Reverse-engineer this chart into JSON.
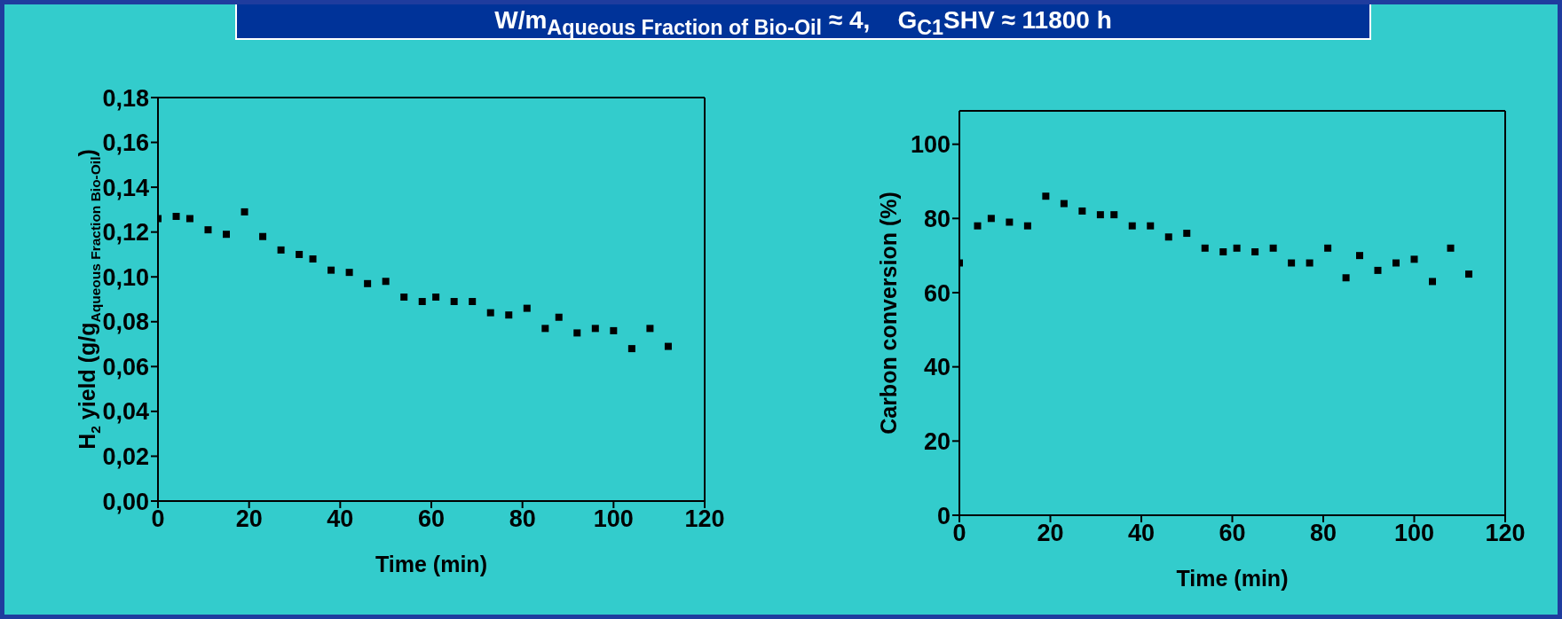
{
  "chart_data": [
    {
      "type": "scatter",
      "title": "W/m$_{Aqueous Fraction of Bio-Oil}$ ≈ 4,    G$_{C1}$SHV ≈ 11800 h",
      "xlabel": "Time (min)",
      "ylabel": "H$_{2}$ yield (g/g$_{Aqueous Fraction Bio-Oil}$)",
      "marker": "square",
      "legend": false,
      "x": [
        0,
        4,
        7,
        11,
        15,
        19,
        23,
        27,
        31,
        34,
        38,
        42,
        46,
        50,
        54,
        58,
        61,
        65,
        69,
        73,
        77,
        81,
        85,
        88,
        92,
        96,
        100,
        104,
        108,
        112
      ],
      "series": [
        {
          "color": "#000000",
          "values": [
            0.126,
            0.127,
            0.126,
            0.121,
            0.119,
            0.129,
            0.118,
            0.112,
            0.11,
            0.108,
            0.103,
            0.102,
            0.097,
            0.098,
            0.091,
            0.089,
            0.091,
            0.089,
            0.089,
            0.084,
            0.083,
            0.086,
            0.077,
            0.082,
            0.075,
            0.077,
            0.076,
            0.068,
            0.077,
            0.069
          ]
        }
      ],
      "xlim": [
        0,
        120
      ],
      "xticks": [
        0,
        20,
        40,
        60,
        80,
        100,
        120
      ],
      "ylim": [
        0,
        0.18
      ],
      "yticks": [
        {
          "value": 0,
          "label": "0,00"
        },
        {
          "value": 0.02,
          "label": "0,02"
        },
        {
          "value": 0.04,
          "label": "0,04"
        },
        {
          "value": 0.06,
          "label": "0,06"
        },
        {
          "value": 0.08,
          "label": "0,08"
        },
        {
          "value": 0.1,
          "label": "0,10"
        },
        {
          "value": 0.12,
          "label": "0,12"
        },
        {
          "value": 0.14,
          "label": "0,14"
        },
        {
          "value": 0.16,
          "label": "0,16"
        },
        {
          "value": 0.18,
          "label": "0,18"
        }
      ]
    },
    {
      "type": "scatter",
      "xlabel": "Time (min)",
      "ylabel": "Carbon conversion (%)",
      "marker": "square",
      "legend": false,
      "x": [
        0,
        4,
        7,
        11,
        15,
        19,
        23,
        27,
        31,
        34,
        38,
        42,
        46,
        50,
        54,
        58,
        61,
        65,
        69,
        73,
        77,
        81,
        85,
        88,
        92,
        96,
        100,
        104,
        108,
        112
      ],
      "series": [
        {
          "color": "#000000",
          "values": [
            68,
            78,
            80,
            79,
            78,
            86,
            84,
            82,
            81,
            81,
            78,
            78,
            75,
            76,
            72,
            71,
            72,
            71,
            72,
            68,
            68,
            72,
            64,
            70,
            66,
            68,
            69,
            63,
            72,
            65
          ]
        }
      ],
      "xlim": [
        0,
        120
      ],
      "xticks": [
        0,
        20,
        40,
        60,
        80,
        100,
        120
      ],
      "ylim": [
        0,
        109
      ],
      "yticks": [
        0,
        20,
        40,
        60,
        80,
        100
      ]
    }
  ]
}
